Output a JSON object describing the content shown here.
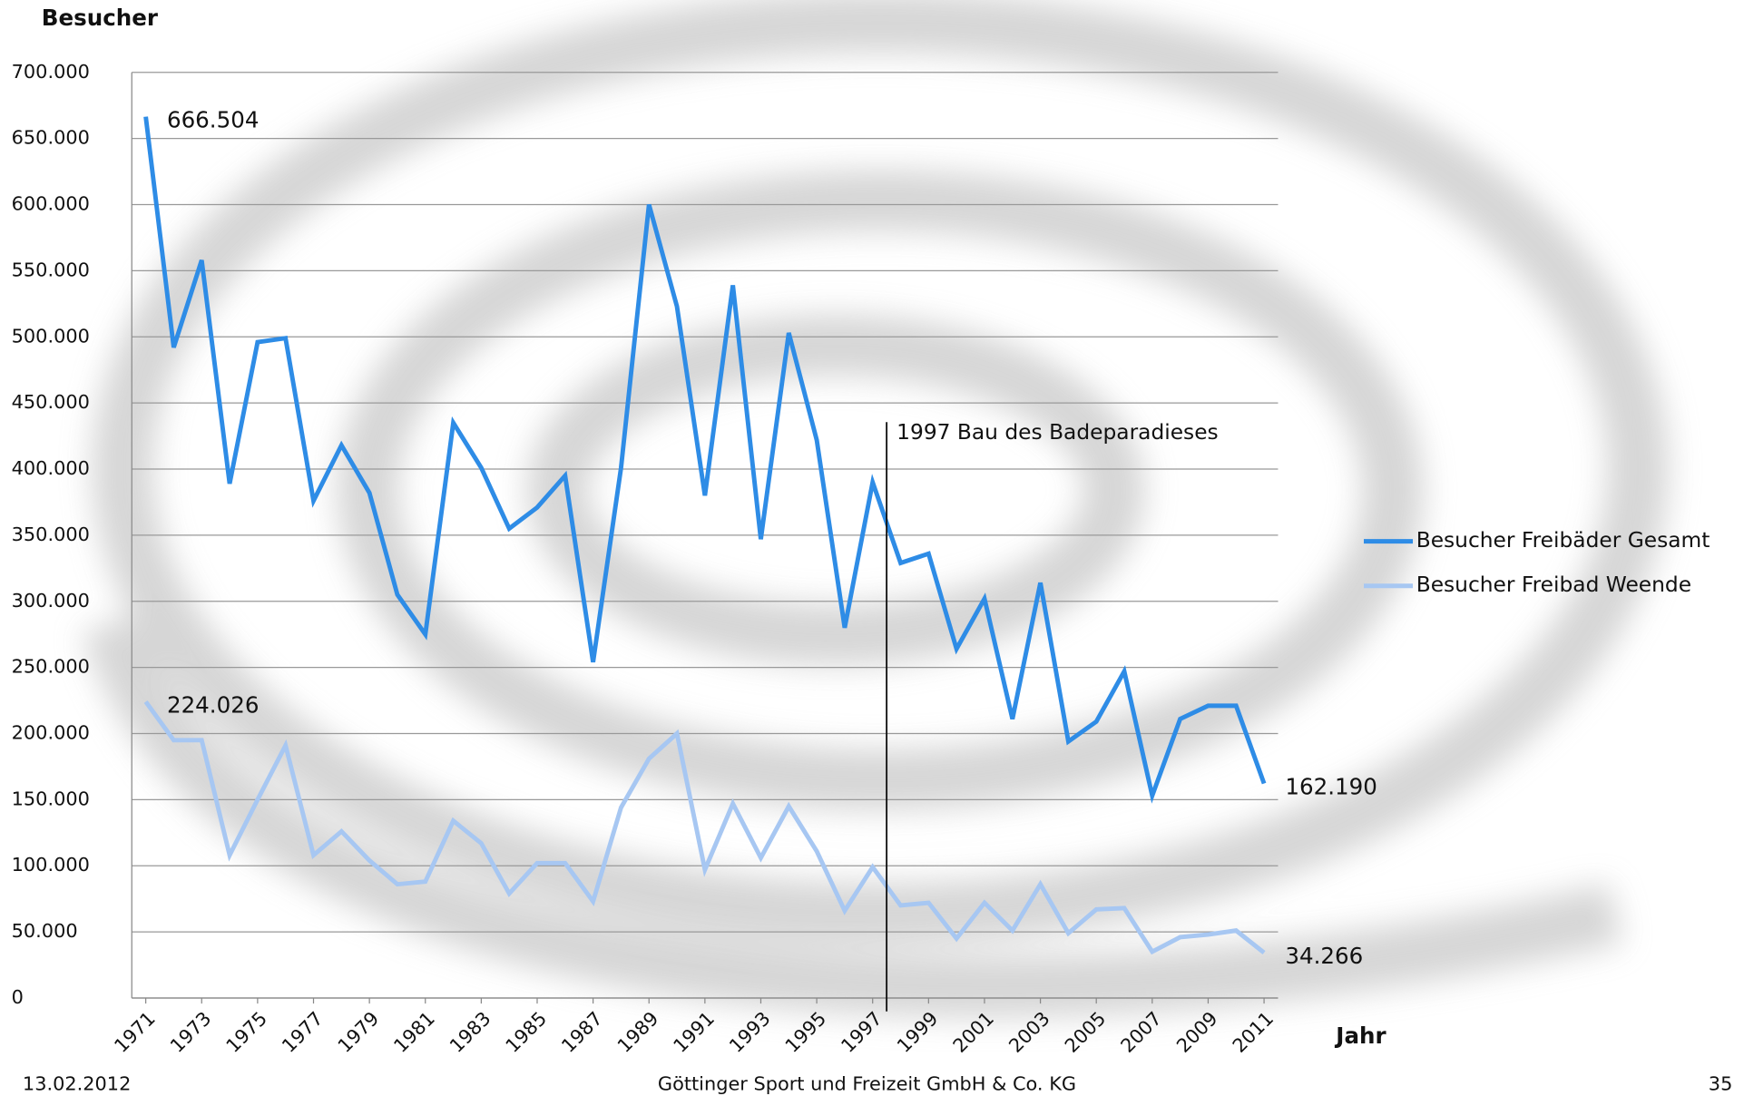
{
  "chart_data": {
    "type": "line",
    "y_label": "Besucher",
    "x_label": "Jahr",
    "x": [
      1971,
      1972,
      1973,
      1974,
      1975,
      1976,
      1977,
      1978,
      1979,
      1980,
      1981,
      1982,
      1983,
      1984,
      1985,
      1986,
      1987,
      1988,
      1989,
      1990,
      1991,
      1992,
      1993,
      1994,
      1995,
      1996,
      1997,
      1998,
      1999,
      2000,
      2001,
      2002,
      2003,
      2004,
      2005,
      2006,
      2007,
      2008,
      2009,
      2010,
      2011
    ],
    "xlim": [
      1970.5,
      2011.5
    ],
    "xticks": [
      1971,
      1973,
      1975,
      1977,
      1979,
      1981,
      1983,
      1985,
      1987,
      1989,
      1991,
      1993,
      1995,
      1997,
      1999,
      2001,
      2003,
      2005,
      2007,
      2009,
      2011
    ],
    "ylim": [
      0,
      700000
    ],
    "yticks": [
      0,
      {
        "value": 50000,
        "label": "50.000"
      },
      {
        "value": 100000,
        "label": "100.000"
      },
      {
        "value": 150000,
        "label": "150.000"
      },
      {
        "value": 200000,
        "label": "200.000"
      },
      {
        "value": 250000,
        "label": "250.000"
      },
      {
        "value": 300000,
        "label": "300.000"
      },
      {
        "value": 350000,
        "label": "350.000"
      },
      {
        "value": 400000,
        "label": "400.000"
      },
      {
        "value": 450000,
        "label": "450.000"
      },
      {
        "value": 500000,
        "label": "500.000"
      },
      {
        "value": 550000,
        "label": "550.000"
      },
      {
        "value": 600000,
        "label": "600.000"
      },
      {
        "value": 650000,
        "label": "650.000"
      },
      {
        "value": 700000,
        "label": "700.000"
      }
    ],
    "grid": true,
    "legend": "right",
    "series": [
      {
        "name": "Besucher Freibäder Gesamt",
        "color": "#2e8ce6",
        "values": [
          666504,
          492000,
          558000,
          389000,
          496000,
          499000,
          376000,
          418000,
          382000,
          305000,
          275000,
          435000,
          401000,
          355000,
          371000,
          395000,
          254000,
          401000,
          600000,
          523000,
          380000,
          539000,
          347000,
          503000,
          422000,
          280000,
          390000,
          329000,
          336000,
          264000,
          302000,
          211000,
          314000,
          194000,
          209000,
          247000,
          153000,
          211000,
          221000,
          221000,
          162190
        ],
        "value_labels": [
          "666.504",
          null,
          null,
          null,
          null,
          null,
          null,
          null,
          null,
          null,
          null,
          null,
          null,
          null,
          null,
          null,
          null,
          null,
          null,
          null,
          null,
          null,
          null,
          null,
          null,
          null,
          null,
          null,
          null,
          null,
          null,
          null,
          null,
          null,
          null,
          null,
          null,
          null,
          null,
          null,
          "162.190"
        ]
      },
      {
        "name": "Besucher Freibad Weende",
        "color": "#a7c7f2",
        "values": [
          224026,
          195000,
          195000,
          108000,
          150000,
          191000,
          108000,
          126000,
          104000,
          86000,
          88000,
          134000,
          117000,
          79000,
          102000,
          102000,
          73000,
          144000,
          181000,
          200000,
          97000,
          147000,
          106000,
          145000,
          111000,
          66000,
          99000,
          70000,
          72000,
          45000,
          72000,
          51000,
          86000,
          49000,
          67000,
          68000,
          35000,
          46000,
          48000,
          51000,
          34266
        ],
        "value_labels": [
          "224.026",
          null,
          null,
          null,
          null,
          null,
          null,
          null,
          null,
          null,
          null,
          null,
          null,
          null,
          null,
          null,
          null,
          null,
          null,
          null,
          null,
          null,
          null,
          null,
          null,
          null,
          null,
          null,
          null,
          null,
          null,
          null,
          null,
          null,
          null,
          null,
          null,
          null,
          null,
          null,
          "34.266"
        ]
      }
    ],
    "annotation": {
      "text": "1997 Bau des Badeparadieses",
      "x": 1997.5
    }
  },
  "footer": {
    "date": "13.02.2012",
    "company": "Göttinger Sport und Freizeit GmbH & Co. KG",
    "page": "35"
  }
}
